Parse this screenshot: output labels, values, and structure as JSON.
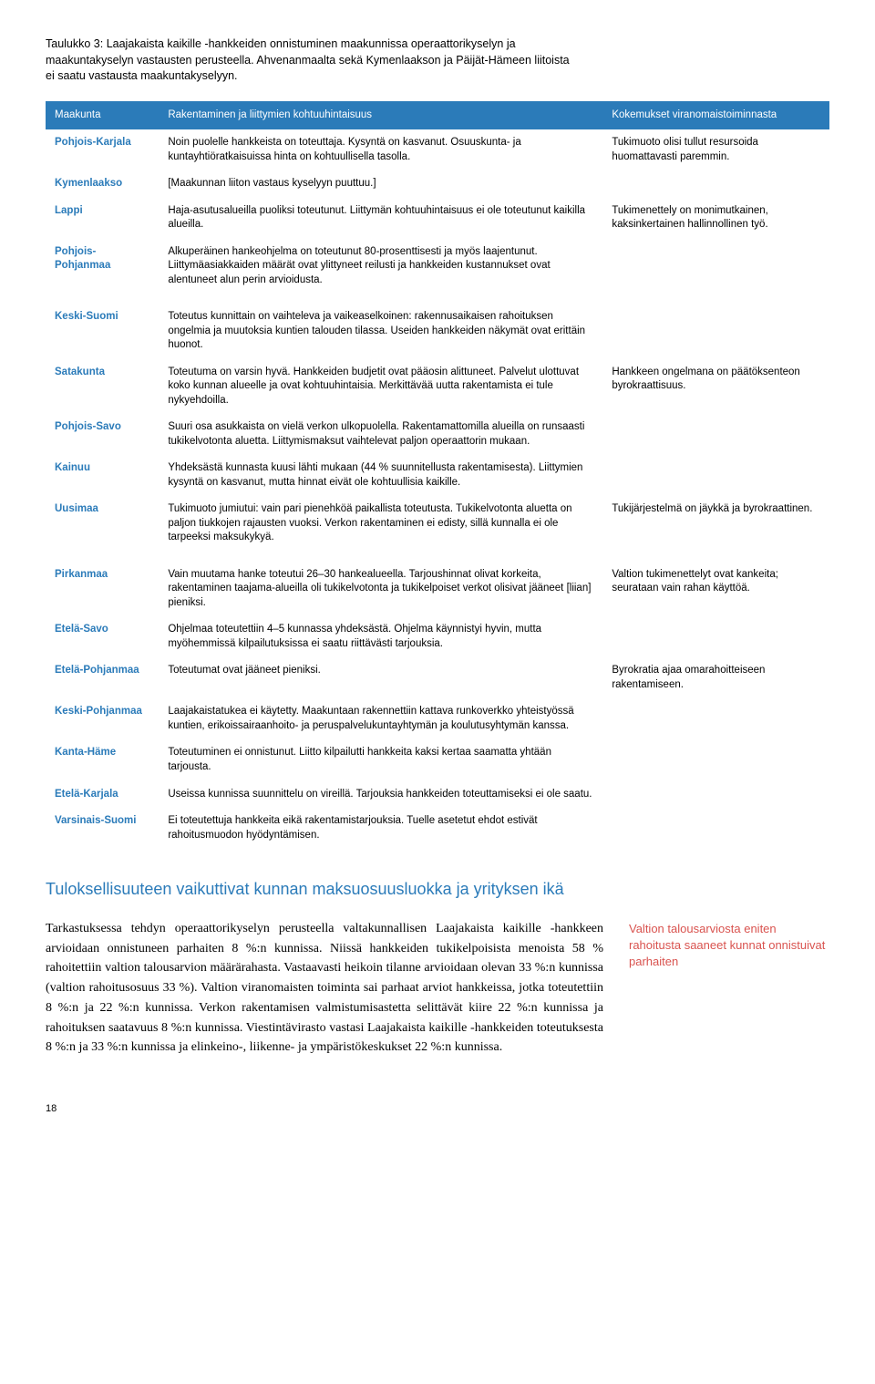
{
  "caption": "Taulukko 3: Laajakaista kaikille -hankkeiden onnistuminen maakunnissa operaattorikyselyn ja maakuntakyselyn vastausten perusteella. Ahvenanmaalta sekä Kymenlaakson ja Päijät-Hämeen liitoista ei saatu vastausta maakuntakyselyyn.",
  "headers": {
    "c1": "Maakunta",
    "c2": "Rakentaminen ja liittymien kohtuuhintaisuus",
    "c3": "Kokemukset viranomaistoiminnasta"
  },
  "groups": [
    [
      {
        "m": "Pohjois-Karjala",
        "r": "Noin puolelle hankkeista on toteuttaja. Kysyntä on kasvanut. Osuuskunta- ja kuntayhtiöratkaisuissa hinta on kohtuullisella tasolla.",
        "k": "Tukimuoto olisi tullut resursoida huomattavasti paremmin."
      },
      {
        "m": "Kymenlaakso",
        "r": "[Maakunnan liiton vastaus kyselyyn puuttuu.]",
        "k": ""
      },
      {
        "m": "Lappi",
        "r": "Haja-asutusalueilla puoliksi toteutunut. Liittymän kohtuuhintaisuus ei ole toteutunut kaikilla alueilla.",
        "k": "Tukimenettely on monimutkainen, kaksinkertainen hallinnollinen työ."
      },
      {
        "m": "Pohjois-Pohjanmaa",
        "r": "Alkuperäinen hankeohjelma on toteutunut 80-prosenttisesti ja myös laajentunut. Liittymäasiakkaiden määrät ovat ylittyneet reilusti ja hankkeiden kustannukset ovat alentuneet alun perin arvioidusta.",
        "k": ""
      }
    ],
    [
      {
        "m": "Keski-Suomi",
        "r": "Toteutus kunnittain on vaihteleva ja vaikeaselkoinen: rakennusaikaisen rahoituksen ongelmia ja muutoksia kuntien talouden tilassa. Useiden hankkeiden näkymät ovat erittäin huonot.",
        "k": ""
      },
      {
        "m": "Satakunta",
        "r": "Toteutuma on varsin hyvä. Hankkeiden budjetit ovat pääosin alittuneet. Palvelut ulottuvat koko kunnan alueelle ja ovat kohtuuhintaisia. Merkittävää uutta rakentamista ei tule nykyehdoilla.",
        "k": "Hankkeen ongelmana on päätöksenteon byrokraattisuus."
      },
      {
        "m": "Pohjois-Savo",
        "r": "Suuri osa asukkaista on vielä verkon ulkopuolella. Rakentamattomilla alueilla on runsaasti tukikelvotonta aluetta. Liittymismaksut vaihtelevat paljon operaattorin mukaan.",
        "k": ""
      },
      {
        "m": "Kainuu",
        "r": "Yhdeksästä kunnasta kuusi lähti mukaan (44 % suunnitellusta rakentamisesta). Liittymien kysyntä on kasvanut, mutta hinnat eivät ole kohtuullisia kaikille.",
        "k": ""
      },
      {
        "m": "Uusimaa",
        "r": "Tukimuoto jumiutui: vain pari pienehköä paikallista toteutusta. Tukikelvotonta aluetta on paljon tiukkojen rajausten vuoksi. Verkon rakentaminen ei edisty, sillä kunnalla ei ole tarpeeksi maksukykyä.",
        "k": "Tukijärjestelmä on jäykkä ja byrokraattinen."
      }
    ],
    [
      {
        "m": "Pirkanmaa",
        "r": "Vain muutama hanke toteutui 26–30 hankealueella. Tarjoushinnat olivat korkeita, rakentaminen taajama-alueilla oli tukikelvotonta ja tukikelpoiset verkot olisivat jääneet [liian] pieniksi.",
        "k": "Valtion tukimenettelyt ovat kankeita; seurataan vain rahan käyttöä."
      },
      {
        "m": "Etelä-Savo",
        "r": "Ohjelmaa toteutettiin 4–5 kunnassa yhdeksästä. Ohjelma käynnistyi hyvin, mutta myöhemmissä kilpailutuksissa ei saatu riittävästi tarjouksia.",
        "k": ""
      },
      {
        "m": "Etelä-Pohjanmaa",
        "r": "Toteutumat ovat jääneet pieniksi.",
        "k": "Byrokratia ajaa omarahoitteiseen rakentamiseen."
      },
      {
        "m": "Keski-Pohjanmaa",
        "r": "Laajakaistatukea ei käytetty. Maakuntaan rakennettiin kattava runkoverkko yhteistyössä kuntien, erikoissairaanhoito- ja peruspalvelukuntayhtymän ja koulutusyhtymän kanssa.",
        "k": ""
      },
      {
        "m": "Kanta-Häme",
        "r": "Toteutuminen ei onnistunut. Liitto kilpailutti hankkeita kaksi kertaa saamatta yhtään tarjousta.",
        "k": ""
      },
      {
        "m": "Etelä-Karjala",
        "r": "Useissa kunnissa suunnittelu on vireillä. Tarjouksia hankkeiden toteuttamiseksi ei ole saatu.",
        "k": ""
      },
      {
        "m": "Varsinais-Suomi",
        "r": "Ei toteutettuja hankkeita eikä rakentamistarjouksia. Tuelle asetetut ehdot estivät rahoitusmuodon hyödyntämisen.",
        "k": ""
      }
    ]
  ],
  "subhead": "Tuloksellisuuteen vaikuttivat kunnan maksuosuusluokka ja yrityksen ikä",
  "body": "Tarkastuksessa tehdyn operaattorikyselyn perusteella valtakunnallisen Laajakaista kaikille -hankkeen arvioidaan onnistuneen parhaiten 8 %:n kunnissa. Niissä hankkeiden tukikelpoisista menoista 58 % rahoitettiin valtion talousarvion määrärahasta. Vastaavasti heikoin tilanne arvioidaan olevan 33 %:n kunnissa (valtion rahoitusosuus 33 %). Valtion viranomaisten toiminta sai parhaat arviot hankkeissa, jotka toteutettiin 8 %:n ja 22 %:n kunnissa. Verkon rakentamisen valmistumisastetta selittävät kiire 22 %:n kunnissa ja rahoituksen saatavuus 8 %:n kunnissa. Viestintävirasto vastasi Laajakaista kaikille -hankkeiden toteutuksesta 8 %:n ja 33 %:n kunnissa ja elinkeino-, liikenne- ja ympäristökeskukset 22 %:n kunnissa.",
  "sidenote": "Valtion talousarviosta eniten rahoitusta saaneet kunnat onnistuivat parhaiten",
  "pagenum": "18"
}
